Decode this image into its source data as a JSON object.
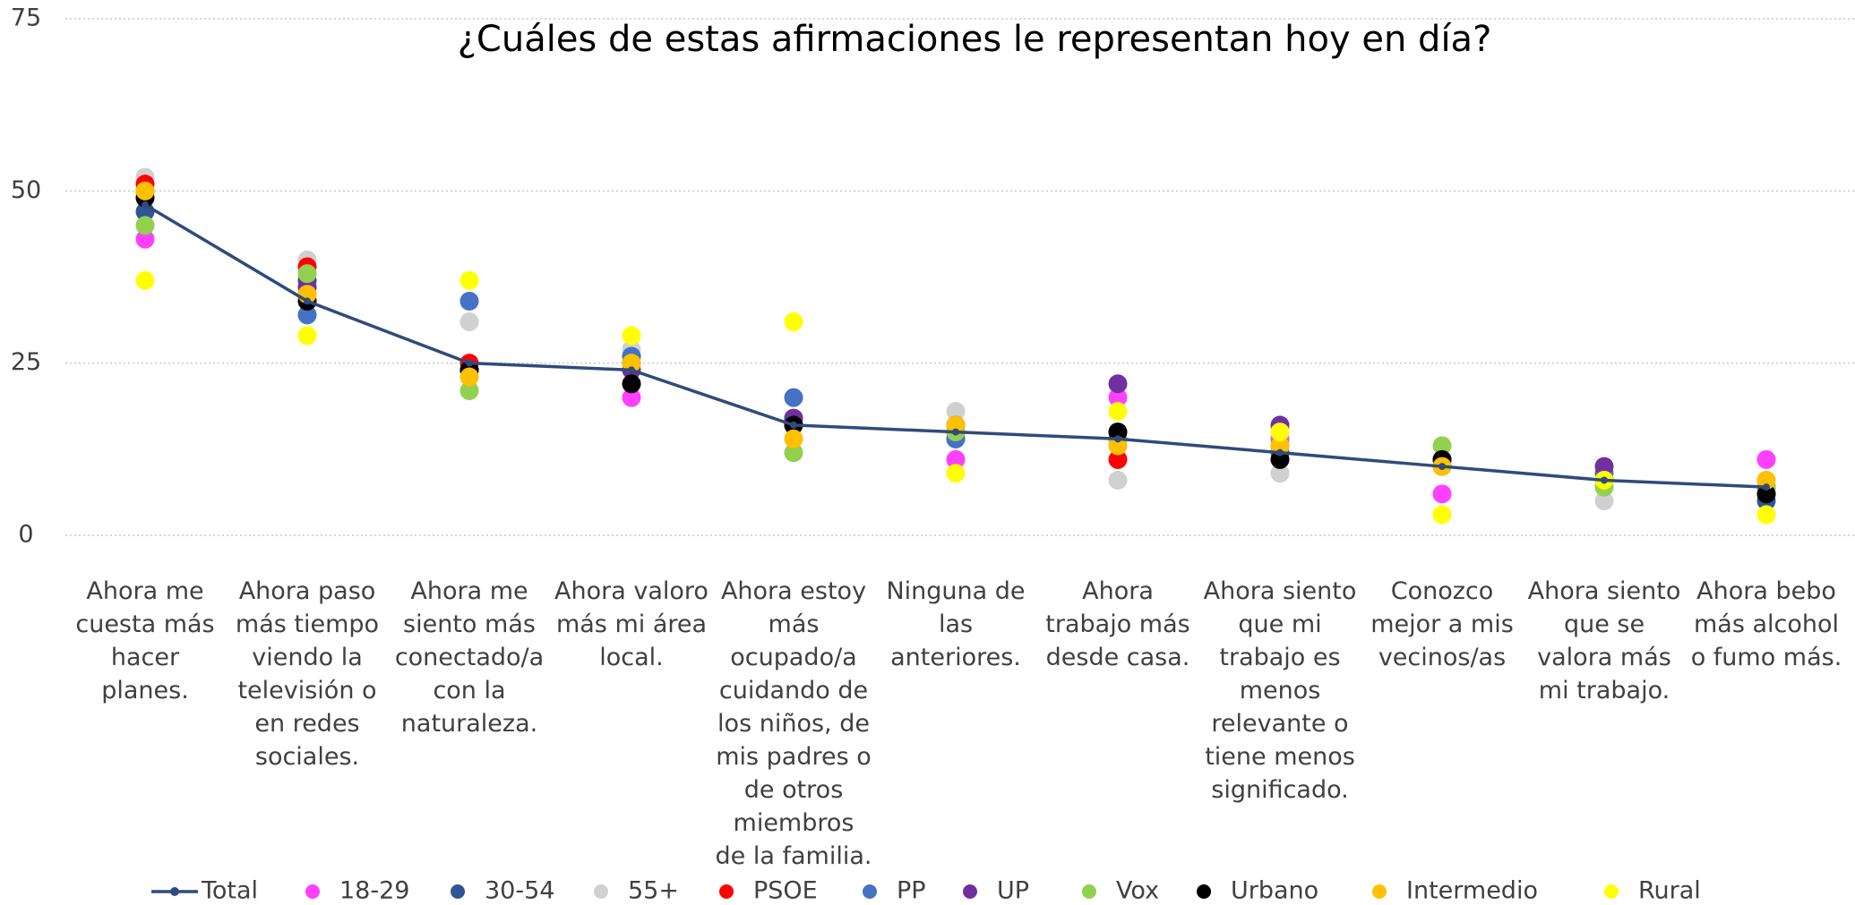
{
  "chart_data": {
    "type": "line",
    "title": "¿Cuáles de estas afirmaciones le representan hoy en día?",
    "categories": [
      "Ahora me cuesta más hacer planes.",
      "Ahora paso más tiempo viendo la televisión o en redes sociales.",
      "Ahora me siento más conectado/a con la naturaleza.",
      "Ahora valoro más mi área local.",
      "Ahora estoy más ocupado/a cuidando de los niños, de mis padres o de otros miembros de la familia.",
      "Ninguna de las anteriores.",
      "Ahora trabajo más desde casa.",
      "Ahora siento que mi trabajo es menos relevante o tiene menos significado.",
      "Conozco mejor a mis vecinos/as",
      "Ahora siento que se valora más mi trabajo.",
      "Ahora bebo más alcohol o fumo más."
    ],
    "ylim": [
      0,
      75
    ],
    "yticks": [
      0,
      25,
      50,
      75
    ],
    "grid": true,
    "series": [
      {
        "name": "Total",
        "color": "#2f4b7c",
        "style": "line",
        "values": [
          48,
          34,
          25,
          24,
          16,
          15,
          14,
          12,
          10,
          8,
          7
        ]
      },
      {
        "name": "18-29",
        "color": "#ff40ff",
        "values": [
          43,
          36,
          24,
          20,
          17,
          11,
          20,
          14,
          6,
          8,
          11
        ]
      },
      {
        "name": "30-54",
        "color": "#2f5597",
        "values": [
          47,
          37,
          24,
          26,
          17,
          14,
          14,
          12,
          10,
          8,
          5
        ]
      },
      {
        "name": "55+",
        "color": "#d0d0d0",
        "values": [
          52,
          40,
          31,
          27,
          16,
          18,
          8,
          9,
          10,
          5,
          7
        ]
      },
      {
        "name": "PSOE",
        "color": "#ff0000",
        "values": [
          51,
          39,
          25,
          25,
          16,
          15,
          11,
          13,
          11,
          8,
          7
        ]
      },
      {
        "name": "PP",
        "color": "#4472c4",
        "values": [
          50,
          32,
          34,
          26,
          20,
          14,
          15,
          12,
          10,
          9,
          6
        ]
      },
      {
        "name": "UP",
        "color": "#7030a0",
        "values": [
          50,
          36,
          24,
          24,
          17,
          15,
          22,
          16,
          11,
          10,
          7
        ]
      },
      {
        "name": "Vox",
        "color": "#92d050",
        "values": [
          45,
          38,
          21,
          25,
          12,
          15,
          14,
          13,
          13,
          7,
          7
        ]
      },
      {
        "name": "Urbano",
        "color": "#000000",
        "values": [
          49,
          34,
          24,
          22,
          16,
          16,
          15,
          11,
          11,
          8,
          6
        ]
      },
      {
        "name": "Intermedio",
        "color": "#ffc000",
        "values": [
          50,
          35,
          23,
          25,
          14,
          16,
          13,
          13,
          10,
          8,
          8
        ]
      },
      {
        "name": "Rural",
        "color": "#ffff00",
        "values": [
          37,
          29,
          37,
          29,
          31,
          9,
          18,
          15,
          3,
          8,
          3
        ]
      }
    ]
  }
}
